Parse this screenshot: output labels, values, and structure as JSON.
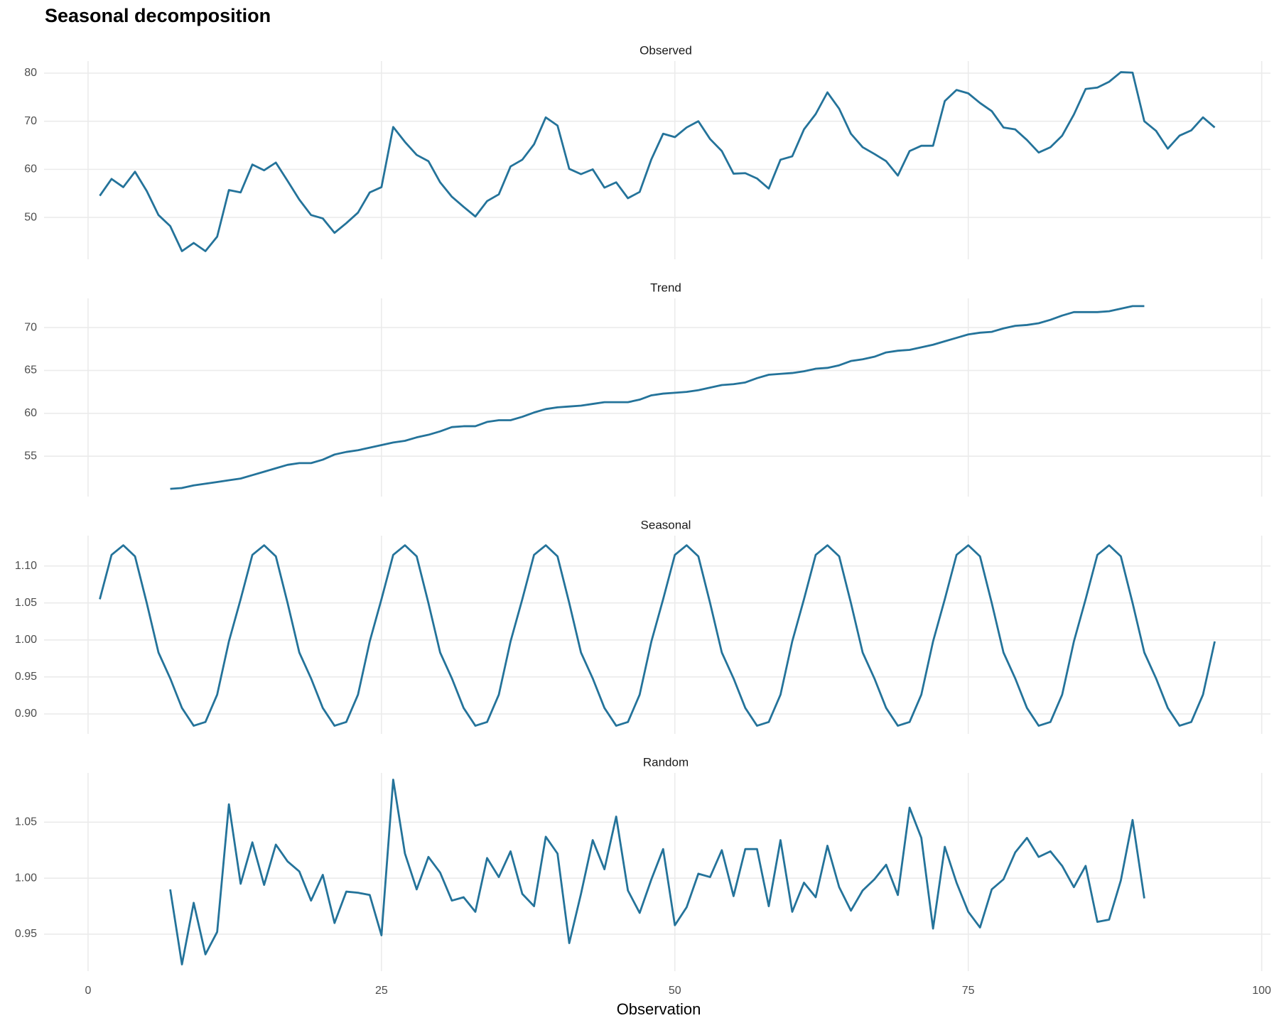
{
  "title": "Seasonal decomposition",
  "chart_data": {
    "type": "line",
    "xlabel": "Observation",
    "color": "#24739a",
    "grid": true,
    "x": [
      1,
      2,
      3,
      4,
      5,
      6,
      7,
      8,
      9,
      10,
      11,
      12,
      13,
      14,
      15,
      16,
      17,
      18,
      19,
      20,
      21,
      22,
      23,
      24,
      25,
      26,
      27,
      28,
      29,
      30,
      31,
      32,
      33,
      34,
      35,
      36,
      37,
      38,
      39,
      40,
      41,
      42,
      43,
      44,
      45,
      46,
      47,
      48,
      49,
      50,
      51,
      52,
      53,
      54,
      55,
      56,
      57,
      58,
      59,
      60,
      61,
      62,
      63,
      64,
      65,
      66,
      67,
      68,
      69,
      70,
      71,
      72,
      73,
      74,
      75,
      76,
      77,
      78,
      79,
      80,
      81,
      82,
      83,
      84,
      85,
      86,
      87,
      88,
      89,
      90,
      91,
      92,
      93,
      94,
      95,
      96
    ],
    "xlim": [
      -3.75,
      100.75
    ],
    "xticks": [
      0,
      25,
      50,
      75,
      100
    ],
    "facets": [
      {
        "title": "Observed",
        "ylim": [
          41.3,
          82.5
        ],
        "yticks": [
          50,
          60,
          70,
          80
        ],
        "values": [
          54.5,
          58,
          56.3,
          59.5,
          55.5,
          50.5,
          48.2,
          43,
          44.7,
          43,
          46,
          55.7,
          55.2,
          61,
          59.8,
          61.4,
          57.6,
          53.7,
          50.5,
          49.8,
          46.8,
          48.8,
          51,
          55.2,
          56.3,
          68.8,
          65.7,
          63,
          61.7,
          57.3,
          54.3,
          52.2,
          50.2,
          53.4,
          54.8,
          60.6,
          62,
          65.2,
          70.8,
          69.1,
          60.1,
          59,
          60,
          56.2,
          57.3,
          54,
          55.3,
          62.1,
          67.4,
          66.7,
          68.7,
          70,
          66.3,
          63.8,
          59.1,
          59.2,
          58.1,
          56,
          62,
          62.7,
          68.3,
          71.5,
          76,
          72.6,
          67.4,
          64.6,
          63.2,
          61.7,
          58.7,
          63.8,
          64.9,
          64.9,
          74.2,
          76.5,
          75.8,
          73.8,
          72.1,
          68.7,
          68.3,
          66.1,
          63.5,
          64.6,
          67,
          71.4,
          76.7,
          77,
          78.2,
          80.2,
          80.1,
          70,
          68,
          64.3,
          67,
          68.1,
          70.8,
          68.7
        ]
      },
      {
        "title": "Trend",
        "ylim": [
          50.3,
          73.4
        ],
        "yticks": [
          55,
          60,
          65,
          70
        ],
        "values": [
          null,
          null,
          null,
          null,
          null,
          null,
          51.2,
          51.3,
          51.6,
          51.8,
          52,
          52.2,
          52.4,
          52.8,
          53.2,
          53.6,
          54,
          54.2,
          54.2,
          54.6,
          55.2,
          55.5,
          55.7,
          56,
          56.3,
          56.6,
          56.8,
          57.2,
          57.5,
          57.9,
          58.4,
          58.5,
          58.5,
          59,
          59.2,
          59.2,
          59.6,
          60.1,
          60.5,
          60.7,
          60.8,
          60.9,
          61.1,
          61.3,
          61.3,
          61.3,
          61.6,
          62.1,
          62.3,
          62.4,
          62.5,
          62.7,
          63,
          63.3,
          63.4,
          63.6,
          64.1,
          64.5,
          64.6,
          64.7,
          64.9,
          65.2,
          65.3,
          65.6,
          66.1,
          66.3,
          66.6,
          67.1,
          67.3,
          67.4,
          67.7,
          68,
          68.4,
          68.8,
          69.2,
          69.4,
          69.5,
          69.9,
          70.2,
          70.3,
          70.5,
          70.9,
          71.4,
          71.8,
          71.8,
          71.8,
          71.9,
          72.2,
          72.5,
          72.5,
          null,
          null,
          null,
          null,
          null,
          null
        ]
      },
      {
        "title": "Seasonal",
        "ylim": [
          0.873,
          1.141
        ],
        "yticks": [
          {
            "value": 0.9,
            "label": "0.90"
          },
          {
            "value": 0.95,
            "label": "0.95"
          },
          {
            "value": 1,
            "label": "1.00"
          },
          {
            "value": 1.05,
            "label": "1.05"
          },
          {
            "value": 1.1,
            "label": "1.10"
          }
        ],
        "values": [
          1.055,
          1.115,
          1.128,
          1.113,
          1.05,
          0.983,
          0.948,
          0.908,
          0.884,
          0.889,
          0.926,
          0.998,
          1.055,
          1.115,
          1.128,
          1.113,
          1.05,
          0.983,
          0.948,
          0.908,
          0.884,
          0.889,
          0.926,
          0.998,
          1.055,
          1.115,
          1.128,
          1.113,
          1.05,
          0.983,
          0.948,
          0.908,
          0.884,
          0.889,
          0.926,
          0.998,
          1.055,
          1.115,
          1.128,
          1.113,
          1.05,
          0.983,
          0.948,
          0.908,
          0.884,
          0.889,
          0.926,
          0.998,
          1.055,
          1.115,
          1.128,
          1.113,
          1.05,
          0.983,
          0.948,
          0.908,
          0.884,
          0.889,
          0.926,
          0.998,
          1.055,
          1.115,
          1.128,
          1.113,
          1.05,
          0.983,
          0.948,
          0.908,
          0.884,
          0.889,
          0.926,
          0.998,
          1.055,
          1.115,
          1.128,
          1.113,
          1.05,
          0.983,
          0.948,
          0.908,
          0.884,
          0.889,
          0.926,
          0.998,
          1.055,
          1.115,
          1.128,
          1.113,
          1.05,
          0.983,
          0.948,
          0.908,
          0.884,
          0.889,
          0.926,
          0.998
        ]
      },
      {
        "title": "Random",
        "ylim": [
          0.917,
          1.094
        ],
        "yticks": [
          {
            "value": 0.95,
            "label": "0.95"
          },
          {
            "value": 1,
            "label": "1.00"
          },
          {
            "value": 1.05,
            "label": "1.05"
          }
        ],
        "values": [
          null,
          null,
          null,
          null,
          null,
          null,
          0.99,
          0.923,
          0.978,
          0.932,
          0.952,
          1.066,
          0.995,
          1.032,
          0.994,
          1.03,
          1.015,
          1.006,
          0.98,
          1.003,
          0.96,
          0.988,
          0.987,
          0.985,
          0.949,
          1.088,
          1.022,
          0.99,
          1.019,
          1.005,
          0.98,
          0.983,
          0.97,
          1.018,
          1.001,
          1.024,
          0.986,
          0.975,
          1.037,
          1.022,
          0.942,
          0.986,
          1.034,
          1.008,
          1.055,
          0.989,
          0.969,
          0.999,
          1.026,
          0.958,
          0.974,
          1.004,
          1.001,
          1.025,
          0.984,
          1.026,
          1.026,
          0.975,
          1.034,
          0.97,
          0.996,
          0.983,
          1.029,
          0.992,
          0.971,
          0.989,
          0.999,
          1.012,
          0.985,
          1.063,
          1.036,
          0.955,
          1.028,
          0.996,
          0.97,
          0.956,
          0.99,
          0.999,
          1.023,
          1.036,
          1.019,
          1.024,
          1.011,
          0.992,
          1.011,
          0.961,
          0.963,
          0.998,
          1.052,
          0.982,
          null,
          null,
          null,
          null,
          null,
          null
        ]
      }
    ]
  }
}
